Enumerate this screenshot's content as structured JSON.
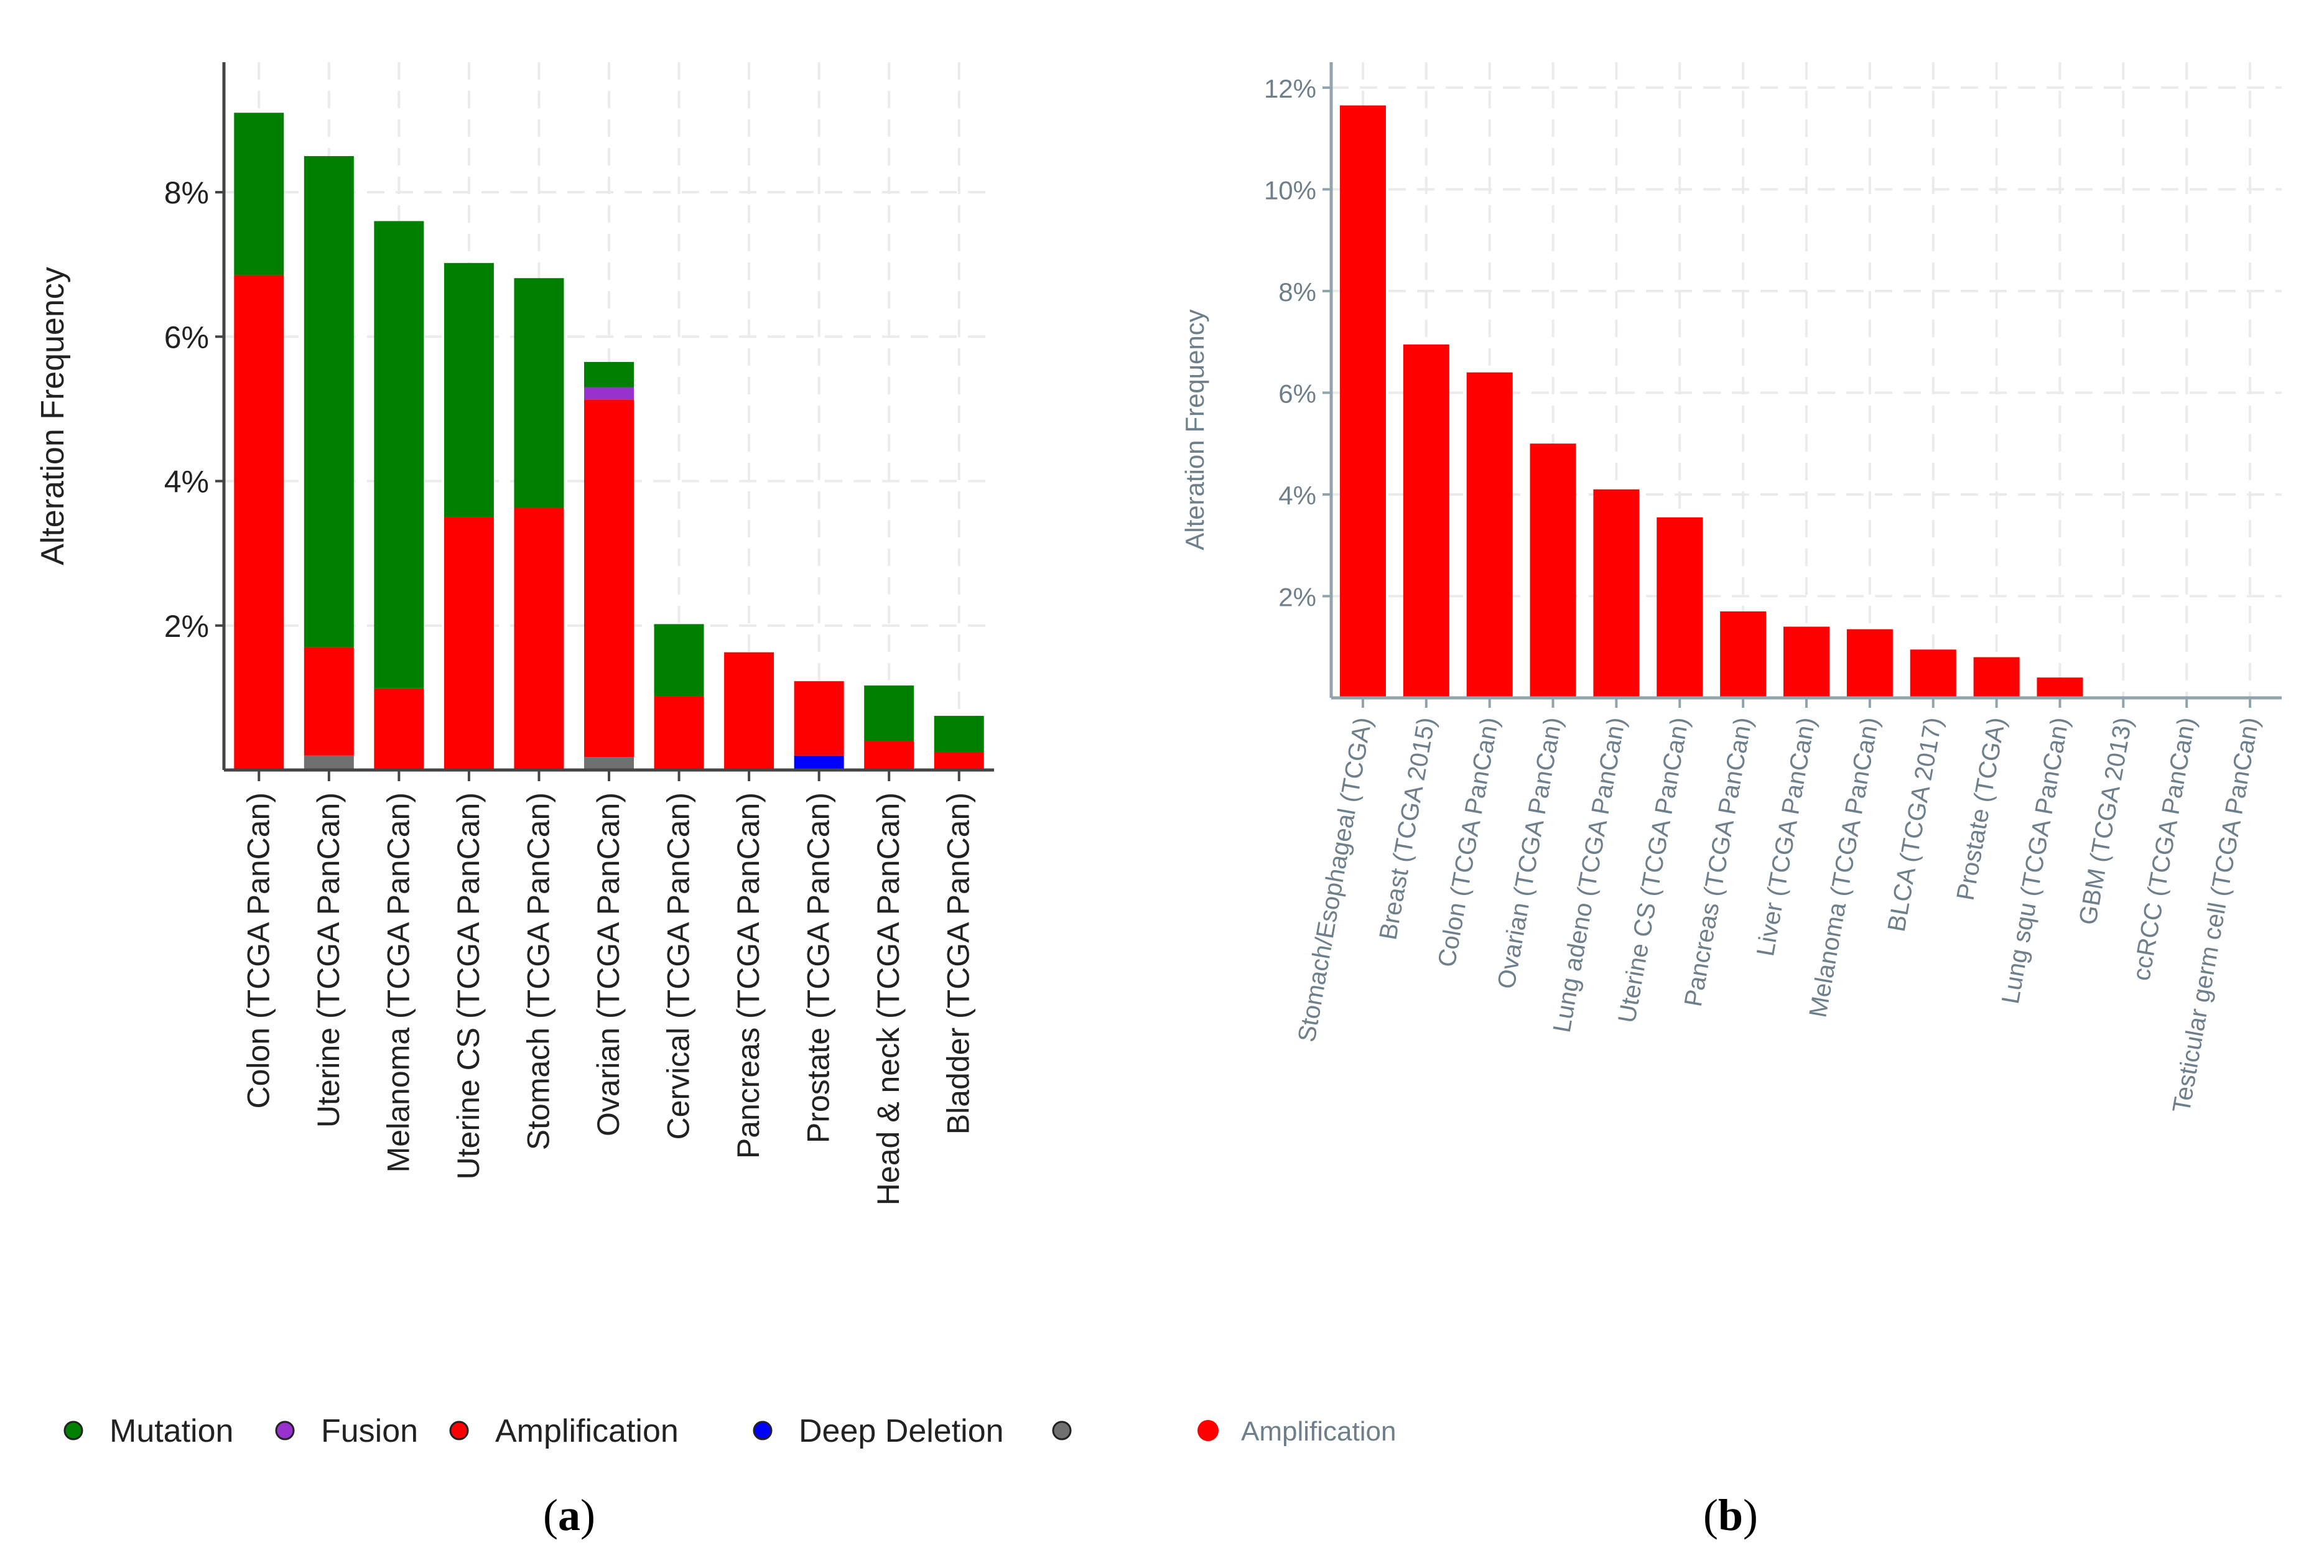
{
  "colors": {
    "mutation": "#008000",
    "fusion": "#9932CC",
    "amplification": "#FF0000",
    "deep_deletion": "#0000FF",
    "other": "#707070",
    "axis_a": "#444444",
    "axis_b": "#90A4AE",
    "grid": "#EBEBEB",
    "text_a": "#222222",
    "text_b": "#6E7F8C"
  },
  "chart_data": [
    {
      "type": "bar",
      "stacked": true,
      "panel_label": "a",
      "panel_label_open": "(",
      "panel_label_close": ")",
      "ylabel": "Alteration Frequency",
      "xlabel": "",
      "ylim": [
        0,
        9.8
      ],
      "yticks": [
        2,
        4,
        6,
        8
      ],
      "ytick_labels": [
        "2%",
        "4%",
        "6%",
        "8%"
      ],
      "grid": true,
      "categories": [
        "Colon (TCGA PanCan)",
        "Uterine (TCGA PanCan)",
        "Melanoma (TCGA PanCan)",
        "Uterine CS (TCGA PanCan)",
        "Stomach (TCGA PanCan)",
        "Ovarian (TCGA PanCan)",
        "Cervical (TCGA PanCan)",
        "Pancreas (TCGA PanCan)",
        "Prostate (TCGA PanCan)",
        "Head & neck (TCGA PanCan)",
        "Bladder (TCGA PanCan)"
      ],
      "series": [
        {
          "name": "Other",
          "color_key": "other",
          "values": [
            0,
            0.2,
            0,
            0,
            0,
            0.18,
            0,
            0,
            0,
            0,
            0
          ]
        },
        {
          "name": "Deep Deletion",
          "color_key": "deep_deletion",
          "values": [
            0,
            0,
            0,
            0,
            0,
            0,
            0,
            0,
            0.2,
            0,
            0
          ]
        },
        {
          "name": "Amplification",
          "color_key": "amplification",
          "values": [
            6.85,
            1.5,
            1.13,
            3.5,
            3.63,
            4.95,
            1.02,
            1.63,
            1.03,
            0.4,
            0.25
          ]
        },
        {
          "name": "Fusion",
          "color_key": "fusion",
          "values": [
            0,
            0,
            0,
            0,
            0,
            0.17,
            0,
            0,
            0,
            0,
            0
          ]
        },
        {
          "name": "Mutation",
          "color_key": "mutation",
          "values": [
            2.25,
            6.8,
            6.47,
            3.52,
            3.18,
            0.35,
            1.0,
            0,
            0,
            0.77,
            0.5
          ]
        }
      ],
      "legend": {
        "position": "bottom-left",
        "items": [
          {
            "label": "Mutation",
            "color_key": "mutation"
          },
          {
            "label": "Fusion",
            "color_key": "fusion"
          },
          {
            "label": "Amplification",
            "color_key": "amplification"
          },
          {
            "label": "Deep Deletion",
            "color_key": "deep_deletion"
          },
          {
            "label": "",
            "color_key": "other"
          }
        ]
      }
    },
    {
      "type": "bar",
      "stacked": false,
      "panel_label": "b",
      "panel_label_open": "(",
      "panel_label_close": ")",
      "ylabel": "Alteration Frequency",
      "xlabel": "",
      "ylim": [
        0,
        12.5
      ],
      "yticks": [
        2,
        4,
        6,
        8,
        10,
        12
      ],
      "ytick_labels": [
        "2%",
        "4%",
        "6%",
        "8%",
        "10%",
        "12%"
      ],
      "grid": true,
      "categories": [
        "Stomach/Esophageal (TCGA)",
        "Breast (TCGA 2015)",
        "Colon (TCGA PanCan)",
        "Ovarian (TCGA PanCan)",
        "Lung adeno (TCGA PanCan)",
        "Uterine CS (TCGA PanCan)",
        "Pancreas (TCGA PanCan)",
        "Liver (TCGA PanCan)",
        "Melanoma (TCGA PanCan)",
        "BLCA (TCGA 2017)",
        "Prostate (TCGA)",
        "Lung squ (TCGA PanCan)",
        "GBM (TCGA 2013)",
        "ccRCC (TCGA PanCan)",
        "Testicular germ cell (TCGA PanCan)"
      ],
      "series": [
        {
          "name": "Amplification",
          "color_key": "amplification",
          "values": [
            11.65,
            6.95,
            6.4,
            5.0,
            4.1,
            3.55,
            1.7,
            1.4,
            1.35,
            0.95,
            0.8,
            0.4,
            0,
            0,
            0
          ]
        }
      ],
      "legend": {
        "position": "bottom",
        "items": [
          {
            "label": "Amplification",
            "color_key": "amplification"
          }
        ]
      }
    }
  ]
}
